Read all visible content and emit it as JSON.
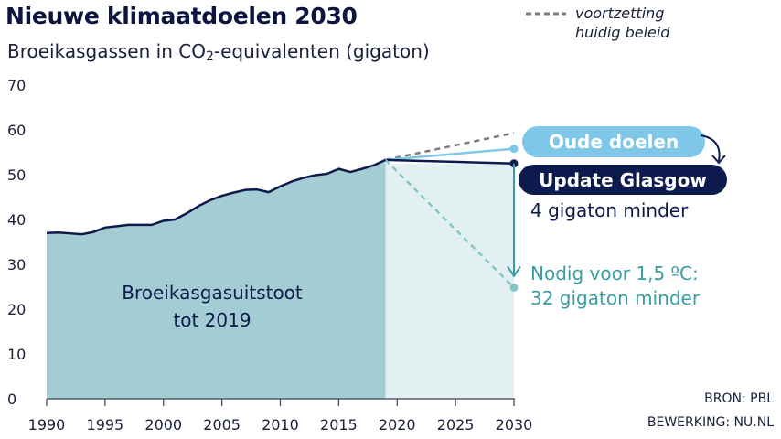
{
  "title": "Nieuwe klimaatdoelen 2030",
  "subtitle_pre": "Broeikasgassen in CO",
  "subtitle_sub": "2",
  "subtitle_post": "-equivalenten (gigaton)",
  "legend": {
    "dashed_line_1": "voortzetting",
    "dashed_line_2": "huidig beleid"
  },
  "source_1": "BRON: PBL",
  "source_2": "BEWERKING: NU.NL",
  "colors": {
    "navy": "#0d1a4d",
    "light_blue": "#7fc7e8",
    "area_fill": "#a3cdd3",
    "future_fill": "#e3f0f1",
    "teal": "#3a9da6",
    "dashed_grey": "#7a7a7a"
  },
  "chart_data": {
    "type": "area",
    "xlim": [
      1990,
      2030
    ],
    "ylim": [
      0,
      70
    ],
    "x_ticks": [
      "1990",
      "1995",
      "2000",
      "2005",
      "2010",
      "2015",
      "2020",
      "2025",
      "2030"
    ],
    "y_ticks": [
      "0",
      "10",
      "20",
      "30",
      "40",
      "50",
      "60",
      "70"
    ],
    "area_label_1": "Broeikasgasuitstoot",
    "area_label_2": "tot 2019",
    "historical": {
      "x": [
        1990,
        1991,
        1992,
        1993,
        1994,
        1995,
        1996,
        1997,
        1998,
        1999,
        2000,
        2001,
        2002,
        2003,
        2004,
        2005,
        2006,
        2007,
        2008,
        2009,
        2010,
        2011,
        2012,
        2013,
        2014,
        2015,
        2016,
        2017,
        2018,
        2019
      ],
      "y": [
        37.0,
        37.1,
        36.9,
        36.7,
        37.2,
        38.2,
        38.5,
        38.8,
        38.8,
        38.8,
        39.7,
        40.0,
        41.4,
        43.0,
        44.3,
        45.3,
        46.0,
        46.6,
        46.7,
        46.1,
        47.4,
        48.5,
        49.3,
        49.9,
        50.2,
        51.3,
        50.6,
        51.3,
        52.1,
        53.3
      ]
    },
    "series": [
      {
        "name": "voortzetting huidig beleid",
        "x": [
          2019,
          2030
        ],
        "y": [
          53.3,
          59.3
        ],
        "style": "dashed"
      },
      {
        "name": "Oude doelen",
        "x": [
          2019,
          2030
        ],
        "y": [
          53.3,
          55.8
        ]
      },
      {
        "name": "Update Glasgow",
        "x": [
          2019,
          2030
        ],
        "y": [
          53.3,
          52.5
        ]
      },
      {
        "name": "Nodig voor 1,5 ºC",
        "x": [
          2019,
          2030
        ],
        "y": [
          53.3,
          24.8
        ],
        "style": "dashed"
      }
    ],
    "annotations": {
      "oude_doelen": "Oude doelen",
      "update_glasgow": "Update Glasgow",
      "glasgow_reduction": "4 gigaton minder",
      "paris_1": "Nodig voor 1,5 ºC:",
      "paris_2": "32 gigaton minder"
    }
  }
}
